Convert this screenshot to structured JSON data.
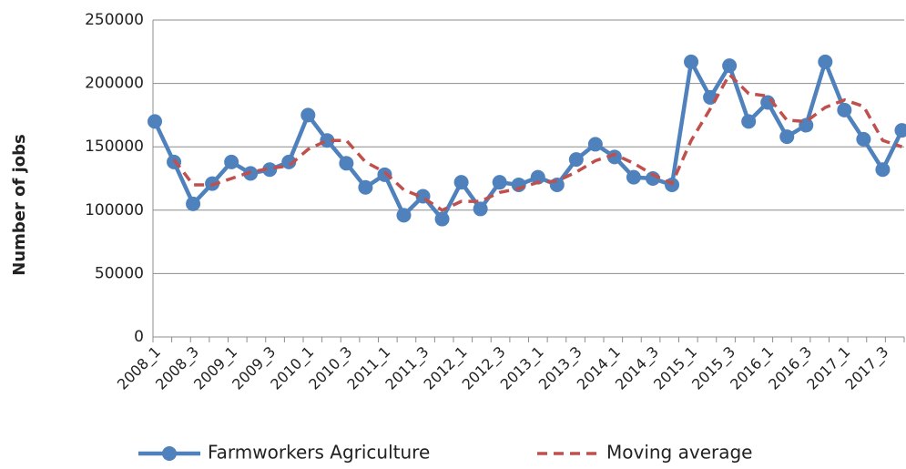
{
  "chart_data": {
    "type": "line",
    "y_label": "Number of jobs",
    "categories": [
      "2008_1",
      null,
      "2008_3",
      null,
      "2009_1",
      null,
      "2009_3",
      null,
      "2010_1",
      null,
      "2010_3",
      null,
      "2011_1",
      null,
      "2011_3",
      null,
      "2012_1",
      null,
      "2012_3",
      null,
      "2013_1",
      null,
      "2013_3",
      null,
      "2014_1",
      null,
      "2014_3",
      null,
      "2015_1",
      null,
      "2015_3",
      null,
      "2016_1",
      null,
      "2016_3",
      null,
      "2017_1",
      null,
      "2017_3",
      null
    ],
    "series": [
      {
        "name": "Farmworkers Agriculture",
        "color": "#4f81bd",
        "style": "solid-marker",
        "values": [
          170000,
          138000,
          105000,
          121000,
          138000,
          129000,
          132000,
          138000,
          175000,
          155000,
          137000,
          118000,
          128000,
          96000,
          111000,
          93000,
          122000,
          101000,
          122000,
          120000,
          126000,
          120000,
          140000,
          152000,
          142000,
          126000,
          125000,
          120000,
          217000,
          189000,
          214000,
          170000,
          185000,
          158000,
          167000,
          217000,
          179000,
          156000,
          132000,
          163000
        ]
      },
      {
        "name": "Moving average",
        "color": "#c0504d",
        "style": "dashed",
        "values": [
          null,
          140000,
          120000,
          120000,
          125000,
          130000,
          133000,
          135000,
          148000,
          155000,
          155000,
          138000,
          130000,
          116000,
          110000,
          100000,
          107000,
          107000,
          114000,
          117000,
          122000,
          123000,
          130000,
          139000,
          144000,
          137000,
          128000,
          121000,
          155000,
          180000,
          207000,
          192000,
          190000,
          171000,
          170000,
          181000,
          187000,
          182000,
          155000,
          150000
        ]
      }
    ],
    "ylim": [
      0,
      250000
    ],
    "yticks": [
      0,
      50000,
      100000,
      150000,
      200000,
      250000
    ],
    "grid": true
  }
}
